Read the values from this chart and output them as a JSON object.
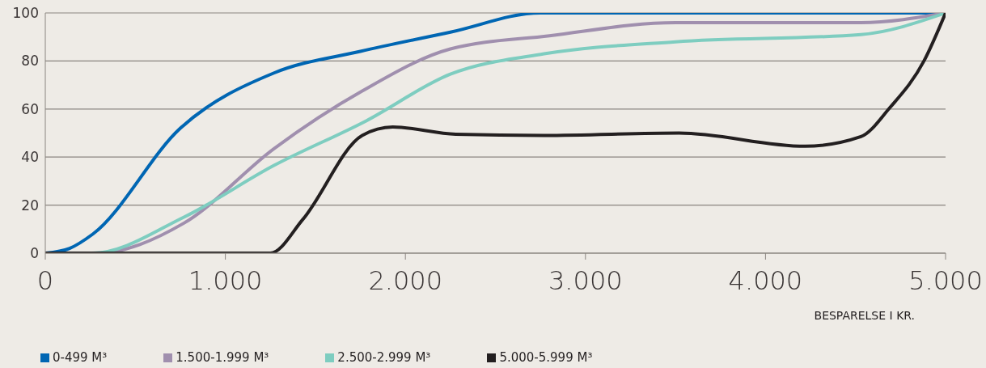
{
  "chart_data": {
    "type": "line",
    "xlabel": "BESPARELSE I KR.",
    "xlim": [
      0,
      5000
    ],
    "xticks": [
      0,
      {
        "value": 1000,
        "label": "1.000"
      },
      {
        "value": 2000,
        "label": "2.000"
      },
      {
        "value": 3000,
        "label": "3.000"
      },
      {
        "value": 4000,
        "label": "4.000"
      },
      {
        "value": 5000,
        "label": "5.000"
      }
    ],
    "ylim": [
      0,
      100
    ],
    "yticks": [
      0,
      20,
      40,
      60,
      80,
      100
    ],
    "grid": "y",
    "legend": "bottom",
    "marker": "none",
    "line_style": "solid",
    "series": [
      {
        "name": "0-499 M³",
        "color": "#0066b3",
        "x": [
          0,
          135,
          265,
          750,
          1270,
          1750,
          2250,
          2750,
          5000
        ],
        "values": [
          0,
          2,
          8,
          52,
          75,
          84,
          92,
          100,
          100
        ]
      },
      {
        "name": "1.500-1.999 M³",
        "color": "#a08fae",
        "x": [
          0,
          280,
          770,
          1270,
          1760,
          2250,
          2800,
          3500,
          4530,
          5000
        ],
        "values": [
          0,
          0,
          12.5,
          43.5,
          67.5,
          85,
          90.5,
          96,
          96,
          100
        ]
      },
      {
        "name": "2.500-2.999 M³",
        "color": "#7ecdc0",
        "x": [
          0,
          260,
          770,
          1270,
          1780,
          2250,
          2770,
          3500,
          4530,
          5000
        ],
        "values": [
          0,
          0,
          15,
          36.5,
          55,
          74.5,
          83,
          88,
          91,
          100
        ]
      },
      {
        "name": "5.000-5.999 M³",
        "color": "#231f20",
        "x": [
          0,
          1000,
          1250,
          1430,
          1760,
          1930,
          2280,
          2770,
          3520,
          4220,
          4530,
          4690,
          4880,
          5000
        ],
        "values": [
          0,
          0,
          0,
          14,
          49,
          52.5,
          49.5,
          49,
          50,
          44.5,
          48.5,
          60.5,
          80,
          100
        ]
      }
    ]
  }
}
